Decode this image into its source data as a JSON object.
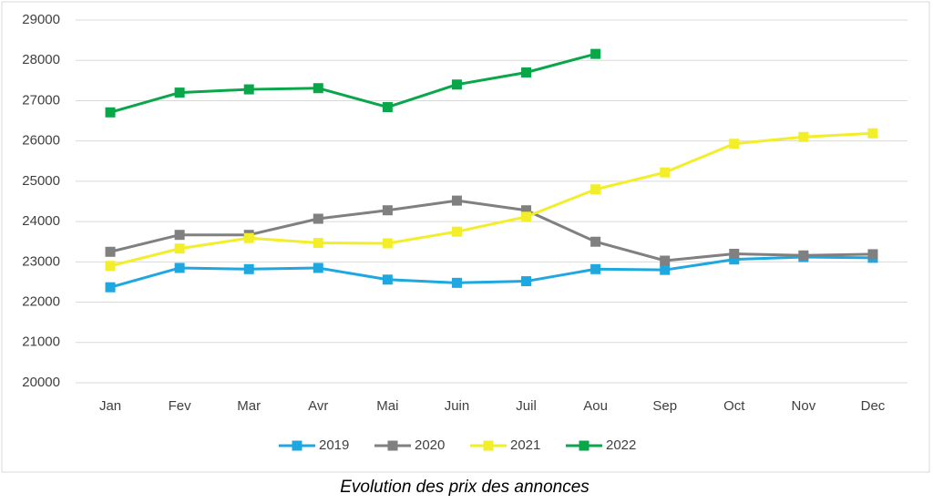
{
  "chart_data": {
    "type": "line",
    "title": "Evolution des prix des annonces",
    "categories": [
      "Jan",
      "Fev",
      "Mar",
      "Avr",
      "Mai",
      "Juin",
      "Juil",
      "Aou",
      "Sep",
      "Oct",
      "Nov",
      "Dec"
    ],
    "series": [
      {
        "name": "2019",
        "color": "#1fa8e0",
        "values": [
          22370,
          22850,
          22820,
          22850,
          22560,
          22480,
          22520,
          22820,
          22800,
          23060,
          23120,
          23100
        ]
      },
      {
        "name": "2020",
        "color": "#808080",
        "values": [
          23250,
          23670,
          23670,
          24070,
          24280,
          24520,
          24280,
          23500,
          23030,
          23200,
          23160,
          23190
        ]
      },
      {
        "name": "2021",
        "color": "#f2ee2a",
        "values": [
          22900,
          23330,
          23590,
          23470,
          23460,
          23750,
          24120,
          24800,
          25220,
          25930,
          26100,
          26190
        ]
      },
      {
        "name": "2022",
        "color": "#0aa64a",
        "values": [
          26710,
          27200,
          27280,
          27310,
          26840,
          27400,
          27700,
          28160,
          null,
          null,
          null,
          null
        ]
      }
    ],
    "ylim": [
      20000,
      29000
    ],
    "yticks": [
      20000,
      21000,
      22000,
      23000,
      24000,
      25000,
      26000,
      27000,
      28000,
      29000
    ],
    "grid": true,
    "legend": "bottom"
  }
}
